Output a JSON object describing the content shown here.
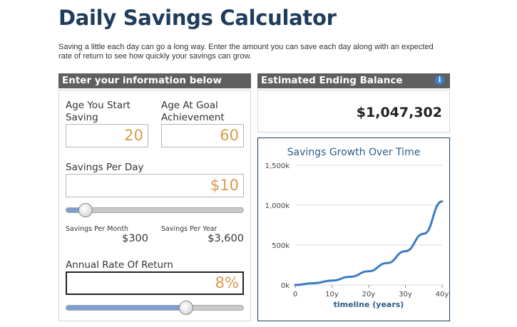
{
  "page": {
    "title": "Daily Savings Calculator",
    "intro": "Saving a little each day can go a long way. Enter the amount you can save each day along with an expected rate of return to see how quickly your savings can grow."
  },
  "inputs_panel": {
    "header": "Enter your information below",
    "age_start": {
      "label": "Age You Start Saving",
      "value": "20"
    },
    "age_goal": {
      "label": "Age At Goal Achievement",
      "value": "60"
    },
    "savings_per_day": {
      "label": "Savings Per Day",
      "value": "$10",
      "slider_level": 0.11
    },
    "savings_per_month": {
      "label": "Savings Per Month",
      "value": "$300"
    },
    "savings_per_year": {
      "label": "Savings Per Year",
      "value": "$3,600"
    },
    "rate_of_return": {
      "label": "Annual Rate Of Return",
      "value": "8%",
      "slider_level": 0.676
    }
  },
  "results_panel": {
    "header": "Estimated Ending Balance",
    "info_icon": "info-icon",
    "ending_balance": "$1,047,302"
  },
  "colors": {
    "title": "#1f3c5c",
    "header_bg": "#5f5f5f",
    "input_value": "#d99a4e",
    "slider_fill": "#7b9fd1",
    "line": "#3a7cc4",
    "axis_title": "#2d5d8a"
  },
  "chart_data": {
    "type": "line",
    "title": "Savings Growth Over Time",
    "xlabel": "timeline (years)",
    "ylabel": "",
    "x_ticks": [
      "0",
      "10y",
      "20y",
      "30y",
      "40y"
    ],
    "y_ticks": [
      "0k",
      "500k",
      "1,000k",
      "1,500k"
    ],
    "xlim": [
      0,
      40
    ],
    "ylim": [
      0,
      1500000
    ],
    "grid": true,
    "legend": "none",
    "series": [
      {
        "x": [
          0,
          5,
          10,
          15,
          20,
          25,
          30,
          35,
          40
        ],
        "values": [
          0,
          22000,
          55000,
          103000,
          172000,
          274000,
          423000,
          642000,
          1047302
        ]
      }
    ]
  }
}
